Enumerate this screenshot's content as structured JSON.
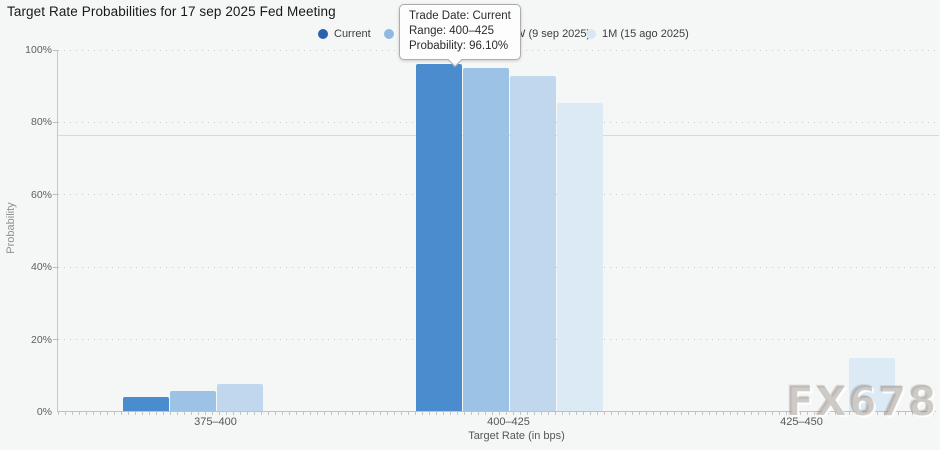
{
  "title": "Target Rate Probabilities for 17 sep 2025 Fed Meeting",
  "legend": {
    "items": [
      {
        "label": "Current",
        "dot": "#2a63ab",
        "show_dot": true
      },
      {
        "label": "",
        "dot": "#8fb9e2",
        "show_dot": true
      },
      {
        "label": "W (9 sep 2025)",
        "dot": "",
        "show_dot": false
      },
      {
        "label": "1M (15 ago 2025)",
        "dot": "#d9e7f5",
        "show_dot": true
      }
    ]
  },
  "tooltip": {
    "lines": [
      "Trade Date: Current",
      "Range: 400–425",
      "Probability: 96.10%"
    ]
  },
  "watermark": "FX678",
  "chart_data": {
    "type": "bar",
    "title": "Target Rate Probabilities for 17 sep 2025 Fed Meeting",
    "categories": [
      "375–400",
      "400–425",
      "425–450"
    ],
    "series": [
      {
        "name": "Current",
        "color": "#4a8ccd",
        "values": [
          3.9,
          96.1,
          0
        ]
      },
      {
        "name": "",
        "color": "#9cc2e5",
        "values": [
          5.5,
          95.0,
          0
        ]
      },
      {
        "name": "W (9 sep 2025)",
        "color": "#c0d7ee",
        "values": [
          7.5,
          92.7,
          0
        ]
      },
      {
        "name": "1M (15 ago 2025)",
        "color": "#dceaf6",
        "values": [
          0,
          85.4,
          14.6
        ]
      }
    ],
    "xlabel": "Target Rate (in bps)",
    "ylabel": "Probability",
    "ylim": [
      0,
      100
    ],
    "y_ticks": [
      "100%",
      "80%",
      "60%",
      "40%",
      "20%",
      "0%"
    ],
    "grid": "dotted horizontal",
    "legend_position": "top",
    "reference_line_pct": 76.2
  }
}
